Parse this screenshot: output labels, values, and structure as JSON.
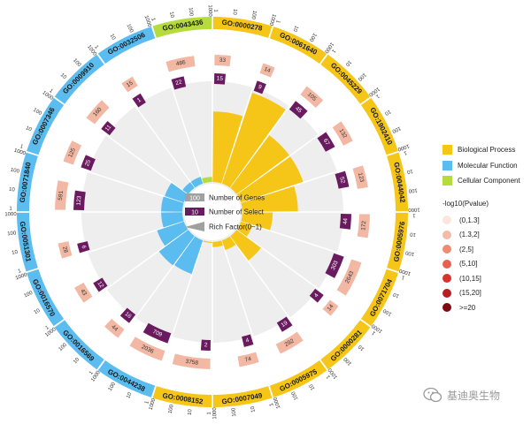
{
  "chart_data": {
    "type": "circular-go-enrichment",
    "log_scale_ticks": [
      "1",
      "10",
      "100",
      "1000"
    ],
    "terms": [
      {
        "id": "GO:0000278",
        "category": "Biological Process",
        "genes": 33,
        "select": 15,
        "rich": 0.7
      },
      {
        "id": "GO:0061640",
        "category": "Biological Process",
        "genes": 14,
        "select": 9,
        "rich": 0.95
      },
      {
        "id": "GO:0045229",
        "category": "Biological Process",
        "genes": 105,
        "select": 45,
        "rich": 0.65
      },
      {
        "id": "GO:1902410",
        "category": "Biological Process",
        "genes": 132,
        "select": 67,
        "rich": 0.65
      },
      {
        "id": "GO:0044042",
        "category": "Biological Process",
        "genes": 123,
        "select": 52,
        "rich": 0.55
      },
      {
        "id": "GO:0005976",
        "category": "Biological Process",
        "genes": 172,
        "select": 44,
        "rich": 0.3
      },
      {
        "id": "GO:0071704",
        "category": "Biological Process",
        "genes": 2643,
        "select": 303,
        "rich": 0.12
      },
      {
        "id": "GO:0000281",
        "category": "Biological Process",
        "genes": 14,
        "select": 4,
        "rich": 0.3
      },
      {
        "id": "GO:0005975",
        "category": "Biological Process",
        "genes": 292,
        "select": 19,
        "rich": 0.1
      },
      {
        "id": "GO:0007049",
        "category": "Biological Process",
        "genes": 74,
        "select": 4,
        "rich": 0.05
      },
      {
        "id": "GO:0008152",
        "category": "Biological Process",
        "genes": 3758,
        "select": 2,
        "rich": 0.01
      },
      {
        "id": "GO:0044238",
        "category": "Molecular Function",
        "genes": 2036,
        "select": 709,
        "rich": 0.35
      },
      {
        "id": "GO:0016569",
        "category": "Molecular Function",
        "genes": 44,
        "select": 16,
        "rich": 0.36
      },
      {
        "id": "GO:0016570",
        "category": "Molecular Function",
        "genes": 43,
        "select": 12,
        "rich": 0.28
      },
      {
        "id": "GO:0051301",
        "category": "Molecular Function",
        "genes": 28,
        "select": 6,
        "rich": 0.21
      },
      {
        "id": "GO:0071840",
        "category": "Molecular Function",
        "genes": 591,
        "select": 123,
        "rich": 0.21
      },
      {
        "id": "GO:0007346",
        "category": "Molecular Function",
        "genes": 125,
        "select": 25,
        "rich": 0.2
      },
      {
        "id": "GO:0009910",
        "category": "Molecular Function",
        "genes": 160,
        "select": 11,
        "rich": 0.07
      },
      {
        "id": "GO:0032506",
        "category": "Molecular Function",
        "genes": 15,
        "select": 1,
        "rich": 0.07
      },
      {
        "id": "GO:0043436",
        "category": "Cellular Component",
        "genes": 486,
        "select": 22,
        "rich": 0.05
      }
    ],
    "category_colors": {
      "Biological Process": "#f5c518",
      "Molecular Function": "#5bbcf0",
      "Cellular Component": "#b5db3c"
    },
    "gene_bar_color": "#f3b8a4",
    "select_bar_color": "#6a1a5f",
    "track_bg_color": "#eeeeee"
  },
  "center_legend": {
    "genes_sample": "100",
    "genes_label": "Number of Genes",
    "select_sample": "10",
    "select_label": "Number of Select",
    "rich_label": "Rich Factor(0~1)"
  },
  "legend": {
    "categories": [
      {
        "label": "Biological Process",
        "color": "#f5c518"
      },
      {
        "label": "Molecular Function",
        "color": "#5bbcf0"
      },
      {
        "label": "Cellular Component",
        "color": "#b5db3c"
      }
    ],
    "pvalue_title": "-log10(Pvalue)",
    "pvalue_bins": [
      {
        "label": "(0,1.3]",
        "color": "#fbe5dc"
      },
      {
        "label": "(1.3,2]",
        "color": "#f4bba7"
      },
      {
        "label": "(2,5]",
        "color": "#ee8b73"
      },
      {
        "label": "(5,10]",
        "color": "#e8614f"
      },
      {
        "label": "(10,15]",
        "color": "#d9332b"
      },
      {
        "label": "(15,20]",
        "color": "#b81d24"
      },
      {
        "label": ">=20",
        "color": "#7e0a12"
      }
    ]
  },
  "watermark": {
    "text": "基迪奥生物"
  }
}
